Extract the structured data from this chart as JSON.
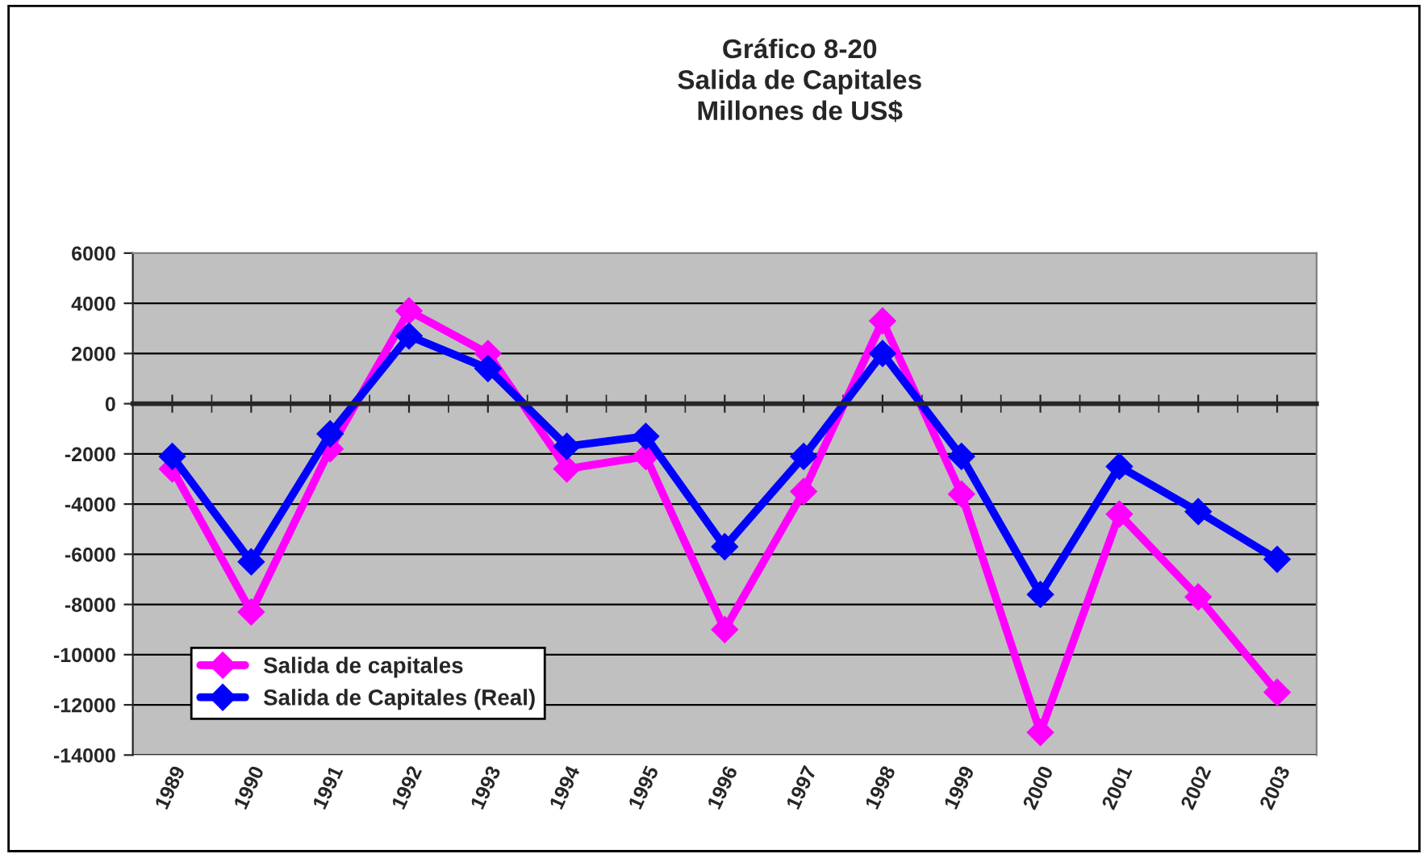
{
  "chart_data": {
    "type": "line",
    "title": "Gráfico 8-20\nSalida de Capitales\nMillones de US$",
    "categories": [
      "1989",
      "1990",
      "1991",
      "1992",
      "1993",
      "1994",
      "1995",
      "1996",
      "1997",
      "1998",
      "1999",
      "2000",
      "2001",
      "2002",
      "2003"
    ],
    "series": [
      {
        "name": "Salida de capitales",
        "color": "#ff00ff",
        "values": [
          -2600,
          -8300,
          -1800,
          3700,
          2000,
          -2600,
          -2100,
          -9000,
          -3500,
          3300,
          -3600,
          -13100,
          -4400,
          -7700,
          -11500
        ]
      },
      {
        "name": "Salida de Capitales (Real)",
        "color": "#0000ff",
        "values": [
          -2100,
          -6300,
          -1200,
          2700,
          1400,
          -1700,
          -1300,
          -5700,
          -2100,
          2000,
          -2100,
          -7600,
          -2500,
          -4300,
          -6200
        ]
      }
    ],
    "ylim": [
      -14000,
      6000
    ],
    "yticks": [
      -14000,
      -12000,
      -10000,
      -8000,
      -6000,
      -4000,
      -2000,
      0,
      2000,
      4000,
      6000
    ],
    "grid": "y",
    "legend": "bottom left",
    "marker": "diamond",
    "line_style": "solid"
  }
}
